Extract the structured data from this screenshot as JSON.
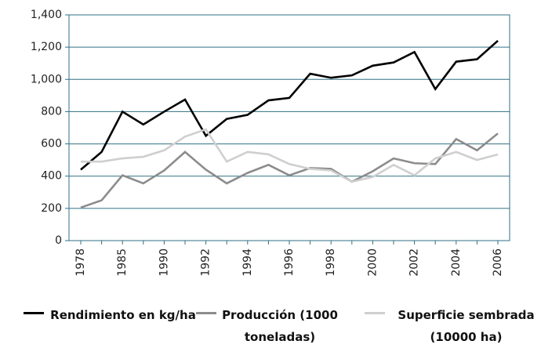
{
  "chart_data": {
    "type": "line",
    "categories": [
      "1978",
      null,
      "1985",
      null,
      "1990",
      null,
      "1992",
      null,
      "1994",
      null,
      "1996",
      null,
      "1998",
      null,
      "2000",
      null,
      "2002",
      null,
      "2004",
      null,
      "2006"
    ],
    "series": [
      {
        "name": "Rendimiento en kg/ha",
        "color": "#000000",
        "values": [
          440,
          550,
          800,
          720,
          800,
          875,
          650,
          755,
          780,
          870,
          885,
          1035,
          1010,
          1025,
          1085,
          1105,
          1170,
          940,
          1110,
          1125,
          1240
        ]
      },
      {
        "name": "Producción (1000 toneladas)",
        "color": "#8c8c8c",
        "values": [
          205,
          250,
          405,
          355,
          435,
          550,
          440,
          355,
          420,
          470,
          405,
          450,
          445,
          365,
          430,
          510,
          480,
          475,
          630,
          560,
          665
        ]
      },
      {
        "name": "Superficie sembrada (10000 ha)",
        "color": "#cfcfcf",
        "values": [
          490,
          490,
          510,
          520,
          560,
          645,
          690,
          490,
          550,
          535,
          475,
          445,
          435,
          365,
          395,
          470,
          405,
          510,
          550,
          500,
          535
        ]
      }
    ],
    "ylim": [
      0,
      1400
    ],
    "yticks": [
      0,
      200,
      400,
      600,
      800,
      {
        "value": 1000,
        "label": "1,000"
      },
      {
        "value": 1200,
        "label": "1,200"
      },
      {
        "value": 1400,
        "label": "1,400"
      }
    ],
    "grid": true,
    "legend": "bottom"
  }
}
